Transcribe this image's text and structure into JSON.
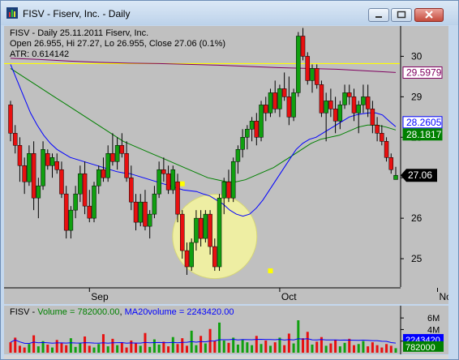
{
  "window": {
    "title": "FISV - Fiserv, Inc. - Daily"
  },
  "chart": {
    "line1": "FISV - Daily 25.11.2011  Fiserv, Inc.",
    "line2": "Open 26.955, Hi 27.27, Lo 26.955, Close 27.06 (0.1%)",
    "line3": "ATR: 0.614142",
    "price_labels": [
      "30",
      "29",
      "28",
      "27",
      "26",
      "25"
    ],
    "month_labels": [
      "Sep",
      "Oct",
      "Nov"
    ],
    "badges": {
      "ma200": "29.5979",
      "ma20": "28.2605",
      "ma50": "28.1817",
      "last": "27.06"
    },
    "colors": {
      "up": "#10a010",
      "down": "#e81010",
      "ma20": "#0000ff",
      "ma50": "#008000",
      "ma200": "#800060",
      "hline": "#ffff00",
      "circle": "#f4f4a0",
      "bg": "#c0c0c0"
    }
  },
  "volume": {
    "label_sym": "FISV - ",
    "label_vol": "Volume = 782000.00",
    "label_sep": ", ",
    "label_ma": "MA20volume = 2243420.00",
    "scale_labels": [
      "6M",
      "4M",
      "2M"
    ],
    "badges": {
      "ma": "2243420",
      "last": "782000"
    }
  },
  "chart_data": {
    "type": "candlestick",
    "title": "FISV - Daily 25.11.2011  Fiserv, Inc.",
    "y_ticks": [
      25,
      26,
      27,
      28,
      29,
      30
    ],
    "ylim": [
      24.3,
      30.75
    ],
    "x_labels": [
      "Sep",
      "Oct",
      "Nov"
    ],
    "last": {
      "open": 26.955,
      "high": 27.27,
      "low": 26.955,
      "close": 27.06
    },
    "ma20_last": 28.2605,
    "ma50_last": 28.1817,
    "ma200_last": 29.5979,
    "volume_last": 782000,
    "volume_ma20_last": 2243420,
    "candles": [
      [
        28.8,
        28.9,
        27.9,
        28.1
      ],
      [
        28.1,
        28.3,
        27.6,
        27.8
      ],
      [
        27.8,
        28.0,
        26.9,
        27.3
      ],
      [
        27.3,
        27.5,
        26.6,
        26.9
      ],
      [
        26.9,
        27.8,
        26.8,
        27.6
      ],
      [
        27.6,
        27.9,
        26.2,
        26.5
      ],
      [
        26.5,
        27.0,
        26.0,
        26.8
      ],
      [
        26.8,
        27.9,
        26.7,
        27.7
      ],
      [
        27.6,
        27.7,
        27.2,
        27.3
      ],
      [
        27.3,
        27.6,
        27.0,
        27.5
      ],
      [
        27.4,
        27.6,
        27.1,
        27.2
      ],
      [
        27.2,
        27.4,
        26.5,
        26.6
      ],
      [
        26.6,
        26.8,
        25.5,
        25.7
      ],
      [
        25.7,
        26.3,
        25.5,
        26.2
      ],
      [
        26.2,
        26.8,
        26.0,
        26.6
      ],
      [
        26.6,
        27.3,
        26.4,
        27.1
      ],
      [
        27.1,
        27.4,
        26.1,
        26.3
      ],
      [
        26.3,
        26.7,
        25.9,
        26.0
      ],
      [
        26.0,
        26.9,
        25.9,
        26.8
      ],
      [
        26.8,
        27.3,
        26.6,
        27.2
      ],
      [
        27.2,
        27.5,
        26.9,
        27.0
      ],
      [
        27.0,
        27.8,
        26.9,
        27.6
      ],
      [
        27.6,
        28.1,
        27.3,
        27.4
      ],
      [
        27.4,
        28.0,
        27.2,
        27.8
      ],
      [
        27.8,
        28.1,
        27.5,
        27.6
      ],
      [
        27.6,
        27.9,
        26.9,
        27.0
      ],
      [
        27.0,
        27.3,
        26.2,
        26.4
      ],
      [
        26.4,
        26.6,
        25.7,
        25.9
      ],
      [
        25.9,
        26.6,
        25.8,
        26.4
      ],
      [
        26.4,
        26.7,
        25.7,
        25.8
      ],
      [
        25.8,
        26.2,
        25.5,
        26.1
      ],
      [
        26.1,
        26.8,
        26.0,
        26.6
      ],
      [
        26.6,
        27.4,
        26.5,
        27.2
      ],
      [
        27.2,
        27.5,
        26.9,
        27.1
      ],
      [
        27.1,
        27.3,
        26.6,
        26.7
      ],
      [
        26.7,
        27.3,
        26.6,
        27.2
      ],
      [
        26.9,
        27.1,
        25.9,
        26.1
      ],
      [
        26.1,
        26.2,
        25.0,
        25.2
      ],
      [
        25.2,
        25.4,
        24.6,
        24.8
      ],
      [
        24.8,
        25.5,
        24.7,
        25.4
      ],
      [
        25.4,
        26.2,
        25.2,
        26.0
      ],
      [
        26.0,
        26.2,
        25.3,
        25.5
      ],
      [
        25.5,
        26.2,
        25.4,
        26.1
      ],
      [
        26.1,
        26.2,
        25.1,
        25.3
      ],
      [
        25.3,
        25.5,
        24.7,
        24.8
      ],
      [
        24.8,
        26.6,
        24.7,
        26.5
      ],
      [
        26.5,
        27.0,
        26.1,
        26.9
      ],
      [
        26.9,
        27.2,
        26.4,
        26.5
      ],
      [
        26.5,
        27.5,
        26.4,
        27.4
      ],
      [
        27.4,
        27.8,
        27.1,
        27.7
      ],
      [
        27.7,
        28.2,
        27.5,
        28.0
      ],
      [
        28.0,
        28.3,
        27.7,
        28.2
      ],
      [
        28.2,
        28.5,
        27.9,
        28.4
      ],
      [
        28.4,
        28.6,
        27.8,
        28.0
      ],
      [
        28.0,
        28.9,
        27.9,
        28.8
      ],
      [
        28.8,
        29.0,
        28.4,
        28.6
      ],
      [
        28.6,
        29.2,
        28.5,
        29.1
      ],
      [
        29.1,
        29.4,
        28.6,
        28.7
      ],
      [
        28.7,
        29.3,
        28.5,
        29.2
      ],
      [
        29.2,
        29.6,
        28.9,
        29.0
      ],
      [
        29.0,
        29.5,
        28.3,
        28.5
      ],
      [
        28.5,
        29.2,
        28.4,
        29.1
      ],
      [
        29.1,
        30.6,
        29.0,
        30.5
      ],
      [
        30.5,
        30.7,
        29.9,
        30.0
      ],
      [
        30.0,
        30.1,
        29.3,
        29.4
      ],
      [
        29.4,
        29.8,
        29.1,
        29.7
      ],
      [
        29.7,
        29.8,
        29.2,
        29.3
      ],
      [
        29.3,
        29.4,
        28.5,
        28.6
      ],
      [
        28.6,
        29.1,
        27.9,
        28.9
      ],
      [
        28.9,
        29.2,
        28.5,
        28.7
      ],
      [
        28.7,
        29.0,
        28.1,
        28.4
      ],
      [
        28.4,
        28.9,
        28.2,
        28.8
      ],
      [
        28.8,
        29.3,
        28.7,
        29.1
      ],
      [
        29.1,
        29.3,
        28.8,
        29.0
      ],
      [
        29.0,
        29.2,
        28.4,
        28.6
      ],
      [
        28.6,
        28.9,
        28.1,
        28.8
      ],
      [
        28.8,
        29.3,
        28.6,
        29.0
      ],
      [
        29.0,
        29.3,
        28.5,
        28.7
      ],
      [
        28.7,
        28.9,
        28.1,
        28.3
      ],
      [
        28.3,
        28.5,
        27.9,
        28.1
      ],
      [
        28.1,
        28.3,
        27.8,
        27.9
      ],
      [
        27.9,
        28.0,
        27.4,
        27.5
      ],
      [
        27.5,
        27.6,
        27.1,
        27.2
      ],
      [
        26.955,
        27.27,
        26.955,
        27.06
      ]
    ],
    "ma20": [
      29.8,
      29.4,
      29.0,
      28.6,
      28.3,
      28.05,
      27.85,
      27.7,
      27.6,
      27.5,
      27.45,
      27.4,
      27.35,
      27.3,
      27.25,
      27.2,
      27.15,
      27.12,
      27.1,
      27.05,
      27.0,
      26.95,
      26.9,
      26.85,
      26.8,
      26.75,
      26.7,
      26.68,
      26.66,
      26.6,
      26.55,
      26.45,
      26.35,
      26.2,
      26.1,
      26.05,
      26.1,
      26.25,
      26.45,
      26.7,
      26.95,
      27.2,
      27.45,
      27.7,
      27.85,
      27.95,
      28.0,
      28.1,
      28.2,
      28.3,
      28.4,
      28.5,
      28.55,
      28.58,
      28.6,
      28.6,
      28.55,
      28.4,
      28.26
    ],
    "ma50": [
      29.7,
      29.55,
      29.4,
      29.25,
      29.1,
      28.95,
      28.8,
      28.65,
      28.5,
      28.35,
      28.2,
      28.05,
      27.9,
      27.8,
      27.7,
      27.6,
      27.5,
      27.4,
      27.3,
      27.2,
      27.1,
      27.0,
      26.95,
      26.9,
      26.9,
      26.95,
      27.05,
      27.15,
      27.25,
      27.4,
      27.55,
      27.7,
      27.85,
      27.95,
      28.0,
      28.05,
      28.15,
      28.25,
      28.3,
      28.3,
      28.25,
      28.18
    ],
    "ma200": [
      29.95,
      29.92,
      29.88,
      29.85,
      29.83,
      29.82,
      29.8,
      29.78,
      29.75,
      29.72,
      29.7,
      29.68,
      29.64,
      29.6
    ],
    "volume": [
      1800000,
      2600000,
      1200000,
      900000,
      1500000,
      3000000,
      1100000,
      2000000,
      1400000,
      900000,
      2200000,
      1700000,
      1300000,
      2500000,
      1000000,
      1600000,
      2800000,
      1200000,
      900000,
      1500000,
      3200000,
      1100000,
      2400000,
      1300000,
      1800000,
      900000,
      2100000,
      1600000,
      1200000,
      3400000,
      1000000,
      2300000,
      1400000,
      1900000,
      1100000,
      2700000,
      1500000,
      2500000,
      1200000,
      3800000,
      1300000,
      2900000,
      1600000,
      4100000,
      2000000,
      5200000,
      2100000,
      1700000,
      2600000,
      1400000,
      2200000,
      1800000,
      1300000,
      2900000,
      1500000,
      2100000,
      1200000,
      1800000,
      2600000,
      1300000,
      3300000,
      1600000,
      5600000,
      2500000,
      3600000,
      1400000,
      1900000,
      2700000,
      1200000,
      1600000,
      2200000,
      1100000,
      1700000,
      2400000,
      1300000,
      1500000,
      2000000,
      1100000,
      1800000,
      1300000,
      900000,
      1500000,
      1200000,
      782000
    ]
  }
}
